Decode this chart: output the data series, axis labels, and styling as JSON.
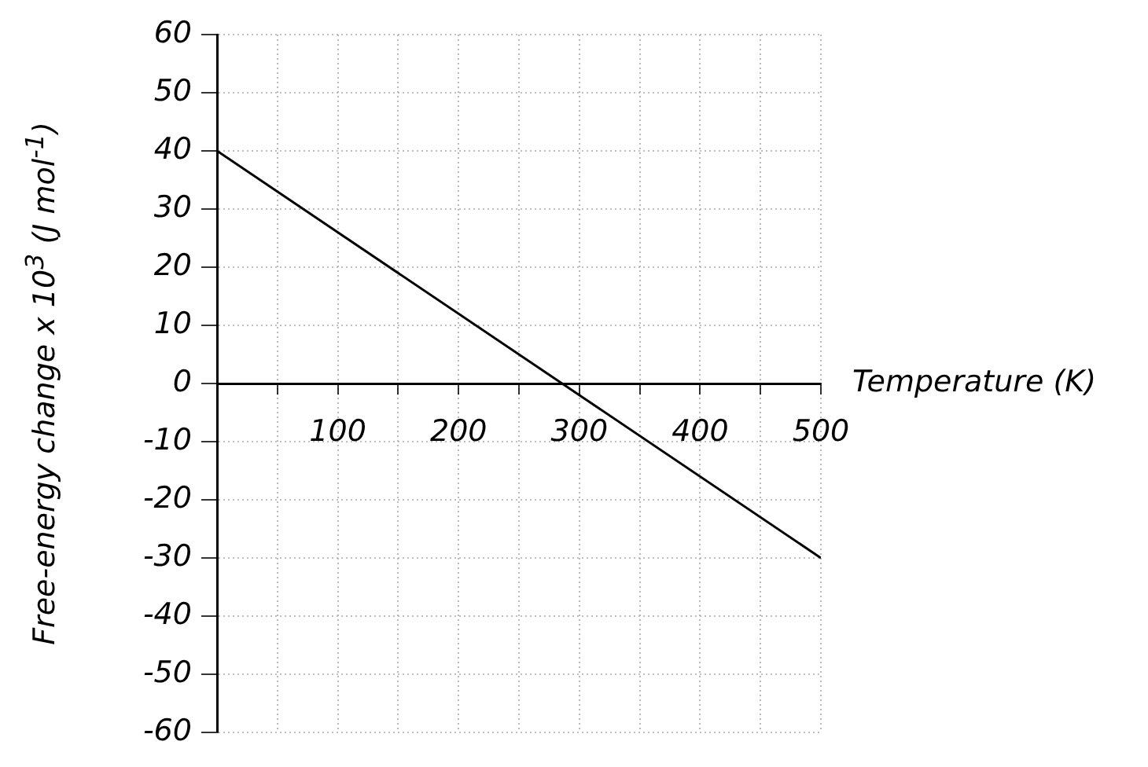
{
  "chart_data": {
    "type": "line",
    "xlabel": "Temperature (K)",
    "ylabel": "Free-energy change x 10$^{3}$ (J mol$^{-1}$)",
    "series": [
      {
        "color": "#000000",
        "x": [
          0,
          500
        ],
        "values": [
          40,
          -30
        ]
      }
    ],
    "xlim": [
      0,
      500
    ],
    "xticks": [
      {
        "value": 50,
        "label": null
      },
      100,
      {
        "value": 150,
        "label": null
      },
      200,
      {
        "value": 250,
        "label": null
      },
      300,
      {
        "value": 350,
        "label": null
      },
      400,
      {
        "value": 450,
        "label": null
      },
      500
    ],
    "ylim": [
      -60,
      60
    ],
    "yticks": [
      -60,
      -50,
      -40,
      -30,
      -20,
      -10,
      0,
      10,
      20,
      30,
      40,
      50,
      60
    ],
    "grid": true,
    "marker": "none",
    "line_style": "solid",
    "legend": false
  }
}
